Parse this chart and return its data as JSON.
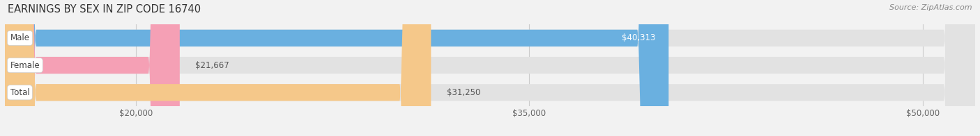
{
  "title": "EARNINGS BY SEX IN ZIP CODE 16740",
  "source": "Source: ZipAtlas.com",
  "categories": [
    "Male",
    "Female",
    "Total"
  ],
  "values": [
    40313,
    21667,
    31250
  ],
  "bar_colors": [
    "#6ab0e0",
    "#f5a0b5",
    "#f5c88a"
  ],
  "value_labels": [
    "$40,313",
    "$21,667",
    "$31,250"
  ],
  "value_label_inside": [
    true,
    false,
    false
  ],
  "value_label_colors_inside": [
    "#ffffff",
    "#555555",
    "#555555"
  ],
  "xmin": 15000,
  "xmax": 52000,
  "xticks": [
    20000,
    35000,
    50000
  ],
  "xtick_labels": [
    "$20,000",
    "$35,000",
    "$50,000"
  ],
  "bar_height": 0.62,
  "background_color": "#f2f2f2",
  "plot_bg_color": "#f2f2f2",
  "bar_track_color": "#e2e2e2",
  "title_fontsize": 10.5,
  "source_fontsize": 8,
  "tick_fontsize": 8.5,
  "label_fontsize": 8.5,
  "value_fontsize": 8.5,
  "grid_color": "#cccccc",
  "label_text_color": "#444444"
}
